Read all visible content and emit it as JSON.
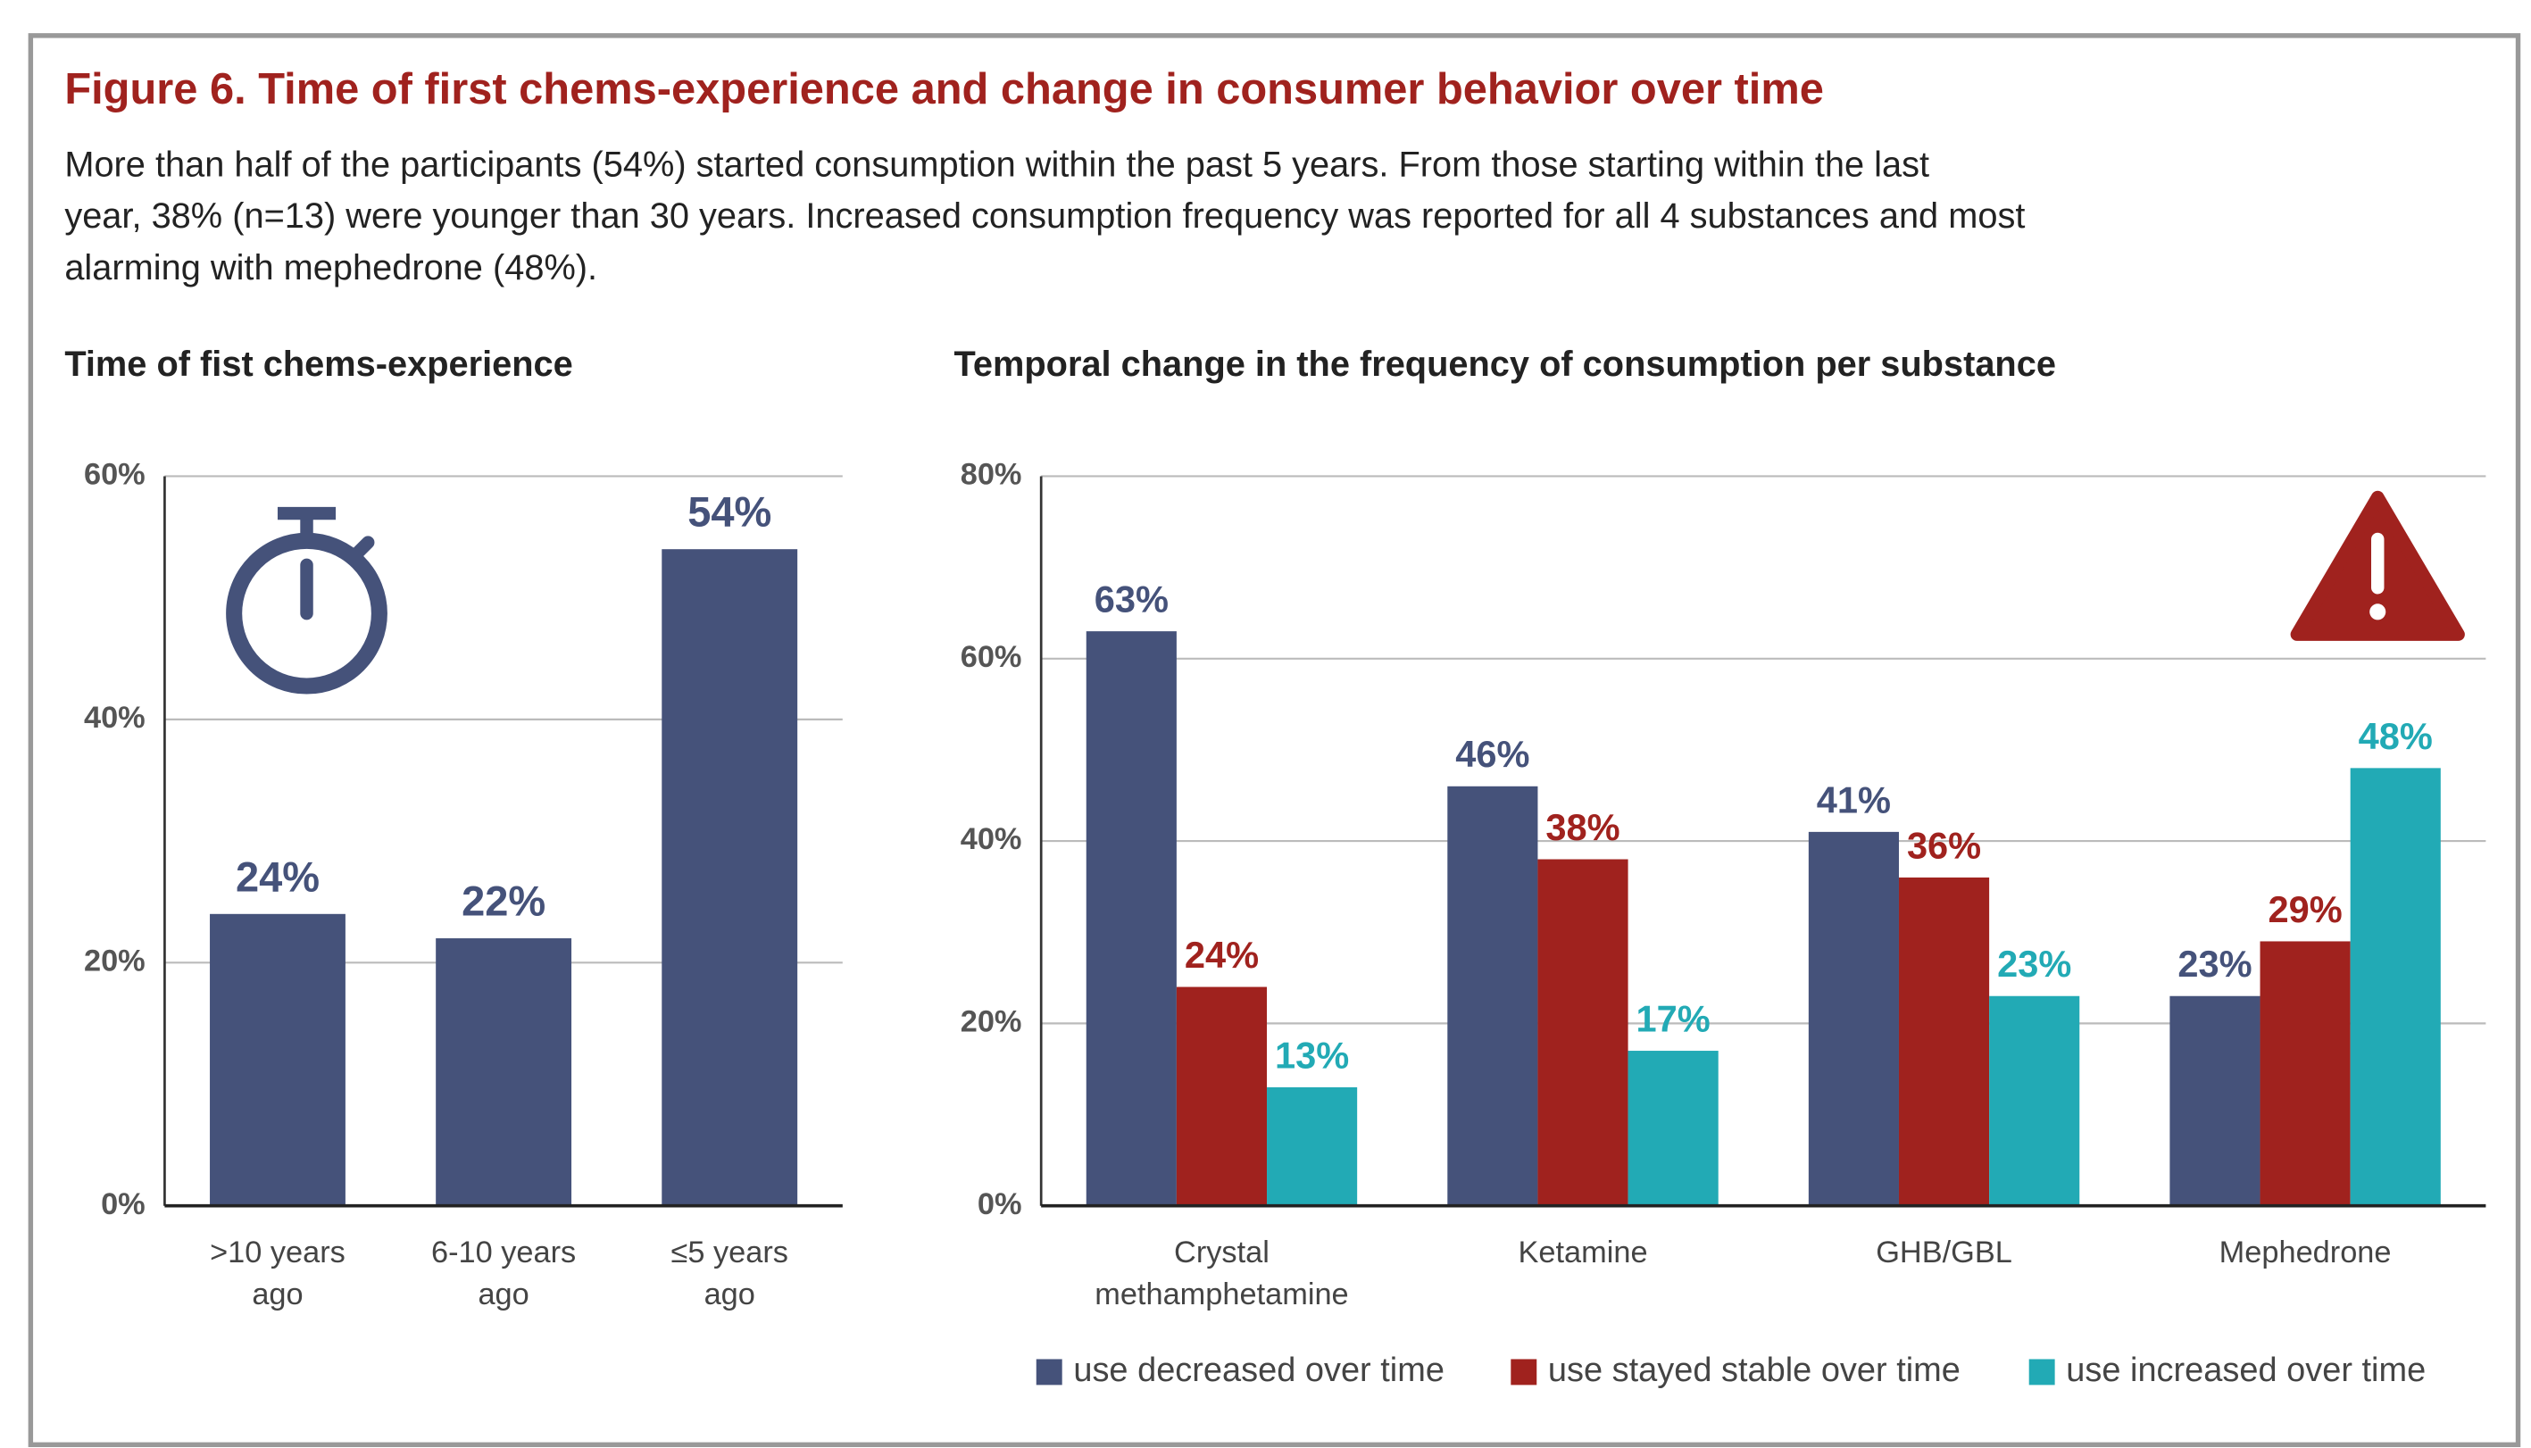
{
  "figure": {
    "title": "Figure 6. Time of first chems-experience and change in consumer behavior over time",
    "text": "More than half of the participants (54%) started consumption within the past 5 years. From those starting within the last year, 38% (n=13) were younger than 30 years. Increased consumption frequency was reported for all 4 substances and most alarming with mephedrone (48%)."
  },
  "chart_data": [
    {
      "type": "bar",
      "title": "Time of fist chems-experience",
      "categories": [
        ">10 years ago",
        "6-10 years ago",
        "≤5 years ago"
      ],
      "values": [
        24,
        22,
        54
      ],
      "value_labels": [
        "24%",
        "22%",
        "54%"
      ],
      "color": "#45527a",
      "ylim": [
        0,
        60
      ],
      "yticks": [
        {
          "value": 0,
          "label": "0%"
        },
        {
          "value": 20,
          "label": "20%"
        },
        {
          "value": 40,
          "label": "40%"
        },
        {
          "value": 60,
          "label": "60%"
        }
      ],
      "grid": true
    },
    {
      "type": "grouped_bar",
      "title": "Temporal change in the frequency of consumption per substance",
      "categories": [
        "Crystal methamphetamine",
        "Ketamine",
        "GHB/GBL",
        "Mephedrone"
      ],
      "series": [
        {
          "name": "use decreased over time",
          "color": "#45527a",
          "values": [
            63,
            46,
            41,
            23
          ],
          "value_labels": [
            "63%",
            "46%",
            "41%",
            "23%"
          ]
        },
        {
          "name": "use stayed stable over time",
          "color": "#a0221e",
          "values": [
            24,
            38,
            36,
            29
          ],
          "value_labels": [
            "24%",
            "38%",
            "36%",
            "29%"
          ]
        },
        {
          "name": "use increased over time",
          "color": "#22aab5",
          "values": [
            13,
            17,
            23,
            48
          ],
          "value_labels": [
            "13%",
            "17%",
            "23%",
            "48%"
          ]
        }
      ],
      "ylim": [
        0,
        80
      ],
      "yticks": [
        {
          "value": 0,
          "label": "0%"
        },
        {
          "value": 20,
          "label": "20%"
        },
        {
          "value": 40,
          "label": "40%"
        },
        {
          "value": 60,
          "label": "60%"
        },
        {
          "value": 80,
          "label": "80%"
        }
      ],
      "grid": true,
      "legend": "bottom"
    }
  ]
}
